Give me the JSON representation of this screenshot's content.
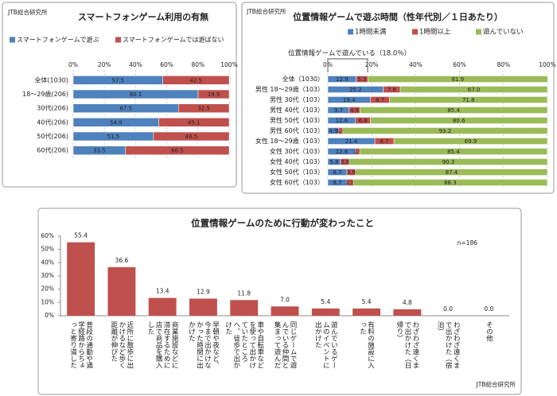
{
  "chart_data": [
    {
      "type": "bar",
      "orientation": "horizontal",
      "stacked": true,
      "grid": true,
      "legend": "top",
      "title": "スマートフォンゲーム利用の有無",
      "source": "JTB総合研究所",
      "categories": [
        "全体(1030)",
        "18～29歳(206)",
        "30代(206)",
        "40代(206)",
        "50代(206)",
        "60代(206)"
      ],
      "series": [
        {
          "name": "スマートフォンゲームで遊ぶ",
          "color": "#4f81bd",
          "values": [
            57.5,
            80.1,
            67.5,
            54.9,
            51.5,
            33.5
          ]
        },
        {
          "name": "スマートフォンゲームでは遊ばない",
          "color": "#c0504d",
          "values": [
            42.5,
            19.9,
            32.5,
            45.1,
            48.5,
            66.5
          ]
        }
      ],
      "xlim": [
        0,
        100
      ],
      "xticks": [
        {
          "value": 0,
          "label": "0%"
        },
        {
          "value": 20,
          "label": "20%"
        },
        {
          "value": 40,
          "label": "40%"
        },
        {
          "value": 60,
          "label": "60%"
        },
        {
          "value": 80,
          "label": "80%"
        },
        {
          "value": 100,
          "label": "100%"
        }
      ]
    },
    {
      "type": "bar",
      "orientation": "horizontal",
      "stacked": true,
      "grid": true,
      "legend": "top",
      "title": "位置情報ゲームで遊ぶ時間（性年代別／１日あたり）",
      "source": "JTB総合研究所",
      "annotation": "位置情報ゲームで遊んでいる（18.0％）",
      "categories": [
        "全体（1030）",
        "男性 18～29歳（103）",
        "男性 30代（103）",
        "男性 40代（103）",
        "男性 50代（103）",
        "男性 60代（103）",
        "女性 18～29歳（103）",
        "女性 30代（103）",
        "女性 40代（103）",
        "女性 50代（103）",
        "女性 60代（103）"
      ],
      "series": [
        {
          "name": "1時間未満",
          "color": "#4f81bd",
          "values": [
            12.9,
            25.2,
            19.4,
            9.7,
            12.6,
            4.9,
            21.4,
            12.6,
            5.8,
            8.7,
            8.7
          ]
        },
        {
          "name": "1時間以上",
          "color": "#c0504d",
          "values": [
            5.3,
            7.8,
            8.7,
            4.9,
            6.8,
            1.9,
            8.7,
            1.9,
            3.9,
            3.9,
            2.9
          ]
        },
        {
          "name": "遊んでいない",
          "color": "#9bbb59",
          "values": [
            81.9,
            67,
            71.8,
            85.4,
            80.6,
            93.2,
            69.9,
            85.4,
            90.3,
            87.4,
            88.3
          ],
          "value_labels": [
            "81.9",
            "67.0",
            "71.8",
            "85.4",
            "80.6",
            "93.2",
            "69.9",
            "85.4",
            "90.3",
            "87.4",
            "88.3"
          ]
        }
      ],
      "xlim": [
        0,
        100
      ],
      "xticks": [
        {
          "value": 0,
          "label": "0%"
        },
        {
          "value": 20,
          "label": "20%"
        },
        {
          "value": 40,
          "label": "40%"
        },
        {
          "value": 60,
          "label": "60%"
        },
        {
          "value": 80,
          "label": "80%"
        },
        {
          "value": 100,
          "label": "100%"
        }
      ]
    },
    {
      "type": "bar",
      "orientation": "vertical",
      "grid": false,
      "title": "位置情報ゲームのために行動が変わったこと",
      "note": "n=186",
      "source": "JTB総合研究所",
      "categories": [
        "普段の通勤や通学経路からちょっと寄り道した",
        "近所に散歩に出かけるなど歩く距離が伸びた",
        "商業施設などに滞在するために店で商品を購入した",
        "早朝や夜など、今まで出かけなかった時間に出かけた",
        "車や自転車などを使って出かけていたところへ、徒歩で出かけた",
        "同じゲームで遊んでいる仲間と集まって遊んだ",
        "遊んでいるゲームのイベントに出かけた",
        "有料の施設に入った",
        "わざわざ遠くまで出かけた（日帰り）",
        "わざわざ遠くまで出かけた（宿泊）",
        "その他"
      ],
      "values": [
        55.4,
        36.6,
        13.4,
        12.9,
        11.8,
        7,
        5.4,
        5.4,
        4.8,
        0,
        0
      ],
      "value_labels": [
        "55.4",
        "36.6",
        "13.4",
        "12.9",
        "11.8",
        "7.0",
        "5.4",
        "5.4",
        "4.8",
        "0.0",
        "0.0"
      ],
      "color": "#c0504d",
      "ylim": [
        0,
        60
      ],
      "yticks": [
        {
          "value": 0,
          "label": "0%"
        },
        {
          "value": 10,
          "label": "10%"
        },
        {
          "value": 20,
          "label": "20%"
        },
        {
          "value": 30,
          "label": "30%"
        },
        {
          "value": 40,
          "label": "40%"
        },
        {
          "value": 50,
          "label": "50%"
        },
        {
          "value": 60,
          "label": "60%"
        }
      ]
    }
  ]
}
